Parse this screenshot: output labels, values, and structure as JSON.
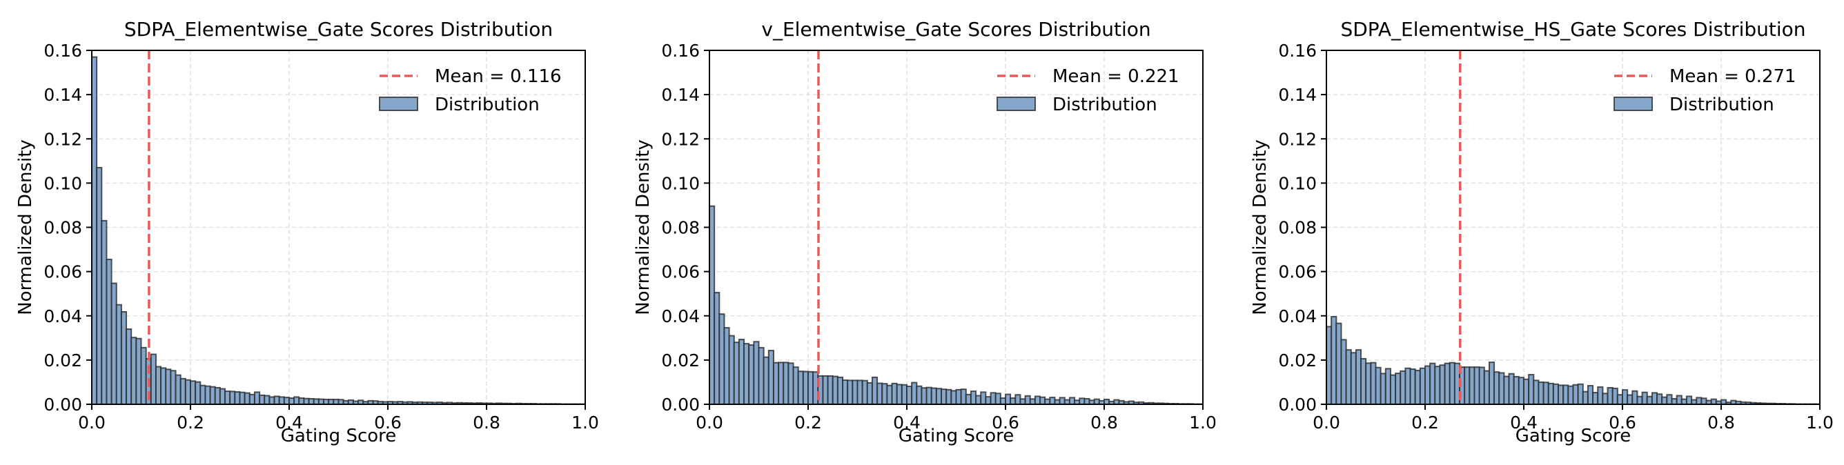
{
  "colors": {
    "bar_fill": "#84a7cb",
    "bar_edge": "#2b2b2b",
    "mean_line": "#e85a5a",
    "grid": "#e3e3e3"
  },
  "chart_data": [
    {
      "type": "bar",
      "title": "SDPA_Elementwise_Gate Scores Distribution",
      "xlabel": "Gating Score",
      "ylabel": "Normalized Density",
      "xlim": [
        0,
        1
      ],
      "ylim": [
        0,
        0.16
      ],
      "xticks": [
        "0.0",
        "0.2",
        "0.4",
        "0.6",
        "0.8",
        "1.0"
      ],
      "yticks": [
        "0.00",
        "0.02",
        "0.04",
        "0.06",
        "0.08",
        "0.10",
        "0.12",
        "0.14",
        "0.16"
      ],
      "grid": true,
      "legend_placement": "top-right",
      "mean": 0.116,
      "legend": [
        "Mean = 0.116",
        "Distribution"
      ],
      "bins": 100,
      "values": [
        0.157,
        0.107,
        0.083,
        0.0655,
        0.0547,
        0.045,
        0.0418,
        0.034,
        0.0302,
        0.0297,
        0.0256,
        0.0206,
        0.0226,
        0.017,
        0.0164,
        0.0158,
        0.0152,
        0.0132,
        0.0116,
        0.011,
        0.0105,
        0.0101,
        0.0085,
        0.0082,
        0.0079,
        0.0075,
        0.007,
        0.0059,
        0.0058,
        0.0056,
        0.0054,
        0.0051,
        0.0044,
        0.0055,
        0.0041,
        0.0039,
        0.0033,
        0.0036,
        0.0033,
        0.0031,
        0.0028,
        0.0033,
        0.0028,
        0.0026,
        0.0025,
        0.0024,
        0.0023,
        0.0022,
        0.0022,
        0.0022,
        0.0021,
        0.0016,
        0.0019,
        0.0014,
        0.0018,
        0.0012,
        0.0016,
        0.0015,
        0.0012,
        0.0011,
        0.0012,
        0.0011,
        0.0012,
        0.001,
        0.0011,
        0.0009,
        0.001,
        0.0009,
        0.0009,
        0.0008,
        0.0009,
        0.0007,
        0.0008,
        0.0006,
        0.0007,
        0.0006,
        0.0006,
        0.0005,
        0.0006,
        0.0005,
        0.0005,
        0.0004,
        0.0005,
        0.0004,
        0.0004,
        0.0003,
        0.0004,
        0.0003,
        0.0003,
        0.0003,
        0.0002,
        0.0002,
        0.0002,
        0.0002,
        0.0002,
        0.0001,
        0.0001,
        0.0001,
        0.0001,
        0.0001
      ]
    },
    {
      "type": "bar",
      "title": "v_Elementwise_Gate Scores Distribution",
      "xlabel": "Gating Score",
      "ylabel": "Normalized Density",
      "xlim": [
        0,
        1
      ],
      "ylim": [
        0,
        0.16
      ],
      "xticks": [
        "0.0",
        "0.2",
        "0.4",
        "0.6",
        "0.8",
        "1.0"
      ],
      "yticks": [
        "0.00",
        "0.02",
        "0.04",
        "0.06",
        "0.08",
        "0.10",
        "0.12",
        "0.14",
        "0.16"
      ],
      "grid": true,
      "legend_placement": "top-right",
      "mean": 0.221,
      "legend": [
        "Mean = 0.221",
        "Distribution"
      ],
      "bins": 100,
      "values": [
        0.0896,
        0.0505,
        0.0408,
        0.0346,
        0.031,
        0.028,
        0.0293,
        0.0274,
        0.0268,
        0.0283,
        0.0256,
        0.0213,
        0.0243,
        0.0188,
        0.0189,
        0.0189,
        0.0186,
        0.0168,
        0.0149,
        0.0148,
        0.0147,
        0.0146,
        0.0128,
        0.0128,
        0.0128,
        0.0126,
        0.0122,
        0.0109,
        0.0108,
        0.0108,
        0.0108,
        0.0107,
        0.0097,
        0.0122,
        0.0095,
        0.0093,
        0.0085,
        0.0094,
        0.0089,
        0.0088,
        0.0081,
        0.0098,
        0.0082,
        0.0074,
        0.0076,
        0.0073,
        0.0071,
        0.0068,
        0.0066,
        0.0061,
        0.0066,
        0.0068,
        0.0044,
        0.0059,
        0.0039,
        0.0055,
        0.0034,
        0.0052,
        0.0049,
        0.0028,
        0.0045,
        0.0028,
        0.0043,
        0.0024,
        0.0038,
        0.0024,
        0.0036,
        0.0032,
        0.0023,
        0.0031,
        0.002,
        0.003,
        0.002,
        0.003,
        0.0018,
        0.0027,
        0.0025,
        0.0018,
        0.0023,
        0.0016,
        0.0022,
        0.0013,
        0.002,
        0.0016,
        0.0011,
        0.0014,
        0.0009,
        0.001,
        0.0006,
        0.0007,
        0.0005,
        0.0005,
        0.0004,
        0.0003,
        0.0003,
        0.0002,
        0.0002,
        0.0002,
        0.0001,
        0.0001
      ]
    },
    {
      "type": "bar",
      "title": "SDPA_Elementwise_HS_Gate Scores Distribution",
      "xlabel": "Gating Score",
      "ylabel": "Normalized Density",
      "xlim": [
        0,
        1
      ],
      "ylim": [
        0,
        0.16
      ],
      "xticks": [
        "0.0",
        "0.2",
        "0.4",
        "0.6",
        "0.8",
        "1.0"
      ],
      "yticks": [
        "0.00",
        "0.02",
        "0.04",
        "0.06",
        "0.08",
        "0.10",
        "0.12",
        "0.14",
        "0.16"
      ],
      "grid": true,
      "legend_placement": "top-right",
      "mean": 0.271,
      "legend": [
        "Mean = 0.271",
        "Distribution"
      ],
      "bins": 100,
      "values": [
        0.0351,
        0.0396,
        0.0366,
        0.0292,
        0.0246,
        0.0233,
        0.0246,
        0.0206,
        0.0186,
        0.0188,
        0.0166,
        0.0139,
        0.0161,
        0.0132,
        0.014,
        0.015,
        0.0163,
        0.0159,
        0.0153,
        0.0163,
        0.0173,
        0.0185,
        0.0171,
        0.0177,
        0.0185,
        0.0188,
        0.0185,
        0.0168,
        0.0168,
        0.0168,
        0.0168,
        0.0167,
        0.0151,
        0.019,
        0.0146,
        0.0142,
        0.0126,
        0.0138,
        0.0125,
        0.0121,
        0.0113,
        0.0134,
        0.0108,
        0.01,
        0.0099,
        0.0094,
        0.0091,
        0.0086,
        0.0086,
        0.0082,
        0.0088,
        0.0091,
        0.0057,
        0.0084,
        0.0053,
        0.0078,
        0.0049,
        0.0075,
        0.0072,
        0.0043,
        0.0065,
        0.0042,
        0.006,
        0.0035,
        0.0054,
        0.0035,
        0.0052,
        0.0046,
        0.0032,
        0.0043,
        0.0025,
        0.0039,
        0.0023,
        0.0036,
        0.002,
        0.003,
        0.0027,
        0.0017,
        0.0023,
        0.0014,
        0.002,
        0.0009,
        0.0017,
        0.0013,
        0.001,
        0.0009,
        0.0007,
        0.0006,
        0.0005,
        0.0004,
        0.0004,
        0.0003,
        0.0003,
        0.0002,
        0.0002,
        0.0001,
        0.0001,
        0.0001,
        0.0001,
        0.0001
      ]
    }
  ]
}
